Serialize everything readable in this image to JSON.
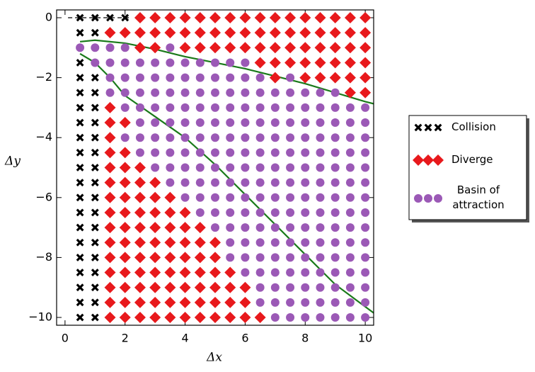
{
  "chart_data": {
    "type": "scatter",
    "xlabel": "Δx",
    "ylabel": "Δy",
    "xlim": [
      -0.28,
      10.28
    ],
    "ylim": [
      -10.26,
      0.26
    ],
    "xticks": [
      0,
      2,
      4,
      6,
      8,
      10
    ],
    "yticks": [
      0,
      {
        "value": -2,
        "label": "−2"
      },
      {
        "value": -4,
        "label": "−4"
      },
      {
        "value": -6,
        "label": "−6"
      },
      {
        "value": -8,
        "label": "−8"
      },
      {
        "value": -10,
        "label": "−10"
      }
    ],
    "legend": "right",
    "series": [
      {
        "name": "Collision",
        "color": "#000000",
        "marker": "x",
        "x": [
          0.5,
          0.5,
          0.5,
          0.5,
          0.5,
          0.5,
          0.5,
          0.5,
          0.5,
          0.5,
          0.5,
          0.5,
          0.5,
          0.5,
          0.5,
          0.5,
          0.5,
          0.5,
          0.5,
          0.5,
          1,
          1,
          1,
          1,
          1,
          1,
          1,
          1,
          1,
          1,
          1,
          1,
          1,
          1,
          1,
          1,
          1,
          1,
          1,
          1.5,
          2
        ],
        "y": [
          0,
          -0.5,
          -1.5,
          -2,
          -2.5,
          -3,
          -3.5,
          -4,
          -4.5,
          -5,
          -5.5,
          -6,
          -6.5,
          -7,
          -7.5,
          -8,
          -8.5,
          -9,
          -9.5,
          -10,
          0,
          -0.5,
          -2,
          -2.5,
          -3,
          -3.5,
          -4,
          -4.5,
          -5,
          -5.5,
          -6,
          -6.5,
          -7,
          -7.5,
          -8,
          -8.5,
          -9,
          -9.5,
          -10,
          0,
          0
        ]
      },
      {
        "name": "Diverge",
        "color": "#e8191c",
        "marker": "D",
        "x": [
          2.5,
          3,
          3.5,
          4,
          4.5,
          5,
          5.5,
          6,
          6.5,
          7,
          7.5,
          8,
          8.5,
          9,
          9.5,
          10,
          1.5,
          2,
          2.5,
          3,
          3.5,
          4,
          4.5,
          5,
          5.5,
          6,
          6.5,
          7,
          7.5,
          8,
          8.5,
          9,
          9.5,
          10,
          2.5,
          3,
          4,
          4.5,
          5,
          5.5,
          6,
          6.5,
          7,
          7.5,
          8,
          8.5,
          9,
          9.5,
          10,
          6.5,
          7,
          7.5,
          8,
          8.5,
          9,
          9.5,
          10,
          7,
          8,
          8.5,
          9,
          9.5,
          10,
          9.5,
          10,
          1.5,
          1.5,
          2,
          1.5,
          1.5,
          2,
          1.5,
          2,
          2.5,
          1.5,
          2,
          2.5,
          3,
          1.5,
          2,
          2.5,
          3,
          3.5,
          1.5,
          2,
          2.5,
          3,
          3.5,
          4,
          1.5,
          2,
          2.5,
          3,
          3.5,
          4,
          4.5,
          1.5,
          2,
          2.5,
          3,
          3.5,
          4,
          4.5,
          5,
          1.5,
          2,
          2.5,
          3,
          3.5,
          4,
          4.5,
          5,
          1.5,
          2,
          2.5,
          3,
          3.5,
          4,
          4.5,
          5,
          5.5,
          1.5,
          2,
          2.5,
          3,
          3.5,
          4,
          4.5,
          5,
          5.5,
          6,
          1.5,
          2,
          2.5,
          3,
          3.5,
          4,
          4.5,
          5,
          5.5,
          6,
          1.5,
          2,
          2.5,
          3,
          3.5,
          4,
          4.5,
          5,
          5.5,
          6,
          6.5
        ],
        "y": [
          0,
          0,
          0,
          0,
          0,
          0,
          0,
          0,
          0,
          0,
          0,
          0,
          0,
          0,
          0,
          0,
          -0.5,
          -0.5,
          -0.5,
          -0.5,
          -0.5,
          -0.5,
          -0.5,
          -0.5,
          -0.5,
          -0.5,
          -0.5,
          -0.5,
          -0.5,
          -0.5,
          -0.5,
          -0.5,
          -0.5,
          -0.5,
          -1,
          -1,
          -1,
          -1,
          -1,
          -1,
          -1,
          -1,
          -1,
          -1,
          -1,
          -1,
          -1,
          -1,
          -1,
          -1.5,
          -1.5,
          -1.5,
          -1.5,
          -1.5,
          -1.5,
          -1.5,
          -1.5,
          -2,
          -2,
          -2,
          -2,
          -2,
          -2,
          -2.5,
          -2.5,
          -3,
          -3.5,
          -3.5,
          -4,
          -4.5,
          -4.5,
          -5,
          -5,
          -5,
          -5.5,
          -5.5,
          -5.5,
          -5.5,
          -6,
          -6,
          -6,
          -6,
          -6,
          -6.5,
          -6.5,
          -6.5,
          -6.5,
          -6.5,
          -6.5,
          -7,
          -7,
          -7,
          -7,
          -7,
          -7,
          -7,
          -7.5,
          -7.5,
          -7.5,
          -7.5,
          -7.5,
          -7.5,
          -7.5,
          -7.5,
          -8,
          -8,
          -8,
          -8,
          -8,
          -8,
          -8,
          -8,
          -8.5,
          -8.5,
          -8.5,
          -8.5,
          -8.5,
          -8.5,
          -8.5,
          -8.5,
          -8.5,
          -9,
          -9,
          -9,
          -9,
          -9,
          -9,
          -9,
          -9,
          -9,
          -9,
          -9.5,
          -9.5,
          -9.5,
          -9.5,
          -9.5,
          -9.5,
          -9.5,
          -9.5,
          -9.5,
          -9.5,
          -10,
          -10,
          -10,
          -10,
          -10,
          -10,
          -10,
          -10,
          -10,
          -10,
          -10
        ]
      },
      {
        "name": "Basin of attraction",
        "color": "#9b59b6",
        "marker": "o",
        "x": [
          0.5,
          1,
          1.5,
          2,
          3.5,
          1,
          1.5,
          2,
          2.5,
          3,
          3.5,
          4,
          4.5,
          5,
          5.5,
          6,
          1.5,
          2,
          2.5,
          3,
          3.5,
          4,
          4.5,
          5,
          5.5,
          6,
          6.5,
          7.5,
          1.5,
          2,
          2.5,
          3,
          3.5,
          4,
          4.5,
          5,
          5.5,
          6,
          6.5,
          7,
          7.5,
          8,
          8.5,
          9,
          2,
          2.5,
          3,
          3.5,
          4,
          4.5,
          5,
          5.5,
          6,
          6.5,
          7,
          7.5,
          8,
          8.5,
          9,
          9.5,
          10,
          2.5,
          3,
          3.5,
          4,
          4.5,
          5,
          5.5,
          6,
          6.5,
          7,
          7.5,
          8,
          8.5,
          9,
          9.5,
          10,
          2,
          2.5,
          3,
          3.5,
          4,
          4.5,
          5,
          5.5,
          6,
          6.5,
          7,
          7.5,
          8,
          8.5,
          9,
          9.5,
          10,
          2.5,
          3,
          3.5,
          4,
          4.5,
          5,
          5.5,
          6,
          6.5,
          7,
          7.5,
          8,
          8.5,
          9,
          9.5,
          10,
          3,
          3.5,
          4,
          4.5,
          5,
          5.5,
          6,
          6.5,
          7,
          7.5,
          8,
          8.5,
          9,
          9.5,
          10,
          3.5,
          4,
          4.5,
          5,
          5.5,
          6,
          6.5,
          7,
          7.5,
          8,
          8.5,
          9,
          9.5,
          10,
          4,
          4.5,
          5,
          5.5,
          6,
          6.5,
          7,
          7.5,
          8,
          8.5,
          9,
          9.5,
          10,
          4.5,
          5,
          5.5,
          6,
          6.5,
          7,
          7.5,
          8,
          8.5,
          9,
          9.5,
          10,
          5,
          5.5,
          6,
          6.5,
          7,
          7.5,
          8,
          8.5,
          9,
          9.5,
          10,
          5.5,
          6,
          6.5,
          7,
          7.5,
          8,
          8.5,
          9,
          9.5,
          10,
          5.5,
          6,
          6.5,
          7,
          7.5,
          8,
          8.5,
          9,
          9.5,
          10,
          6,
          6.5,
          7,
          7.5,
          8,
          8.5,
          9,
          9.5,
          10,
          6.5,
          7,
          7.5,
          8,
          8.5,
          9,
          9.5,
          10,
          6.5,
          7,
          7.5,
          8,
          8.5,
          9,
          9.5,
          10,
          7,
          7.5,
          8,
          8.5,
          9,
          9.5,
          10
        ],
        "y": [
          -1,
          -1,
          -1,
          -1,
          -1,
          -1.5,
          -1.5,
          -1.5,
          -1.5,
          -1.5,
          -1.5,
          -1.5,
          -1.5,
          -1.5,
          -1.5,
          -1.5,
          -2,
          -2,
          -2,
          -2,
          -2,
          -2,
          -2,
          -2,
          -2,
          -2,
          -2,
          -2,
          -2.5,
          -2.5,
          -2.5,
          -2.5,
          -2.5,
          -2.5,
          -2.5,
          -2.5,
          -2.5,
          -2.5,
          -2.5,
          -2.5,
          -2.5,
          -2.5,
          -2.5,
          -2.5,
          -3,
          -3,
          -3,
          -3,
          -3,
          -3,
          -3,
          -3,
          -3,
          -3,
          -3,
          -3,
          -3,
          -3,
          -3,
          -3,
          -3,
          -3.5,
          -3.5,
          -3.5,
          -3.5,
          -3.5,
          -3.5,
          -3.5,
          -3.5,
          -3.5,
          -3.5,
          -3.5,
          -3.5,
          -3.5,
          -3.5,
          -3.5,
          -3.5,
          -4,
          -4,
          -4,
          -4,
          -4,
          -4,
          -4,
          -4,
          -4,
          -4,
          -4,
          -4,
          -4,
          -4,
          -4,
          -4,
          -4,
          -4.5,
          -4.5,
          -4.5,
          -4.5,
          -4.5,
          -4.5,
          -4.5,
          -4.5,
          -4.5,
          -4.5,
          -4.5,
          -4.5,
          -4.5,
          -4.5,
          -4.5,
          -4.5,
          -5,
          -5,
          -5,
          -5,
          -5,
          -5,
          -5,
          -5,
          -5,
          -5,
          -5,
          -5,
          -5,
          -5,
          -5,
          -5.5,
          -5.5,
          -5.5,
          -5.5,
          -5.5,
          -5.5,
          -5.5,
          -5.5,
          -5.5,
          -5.5,
          -5.5,
          -5.5,
          -5.5,
          -5.5,
          -6,
          -6,
          -6,
          -6,
          -6,
          -6,
          -6,
          -6,
          -6,
          -6,
          -6,
          -6,
          -6,
          -6.5,
          -6.5,
          -6.5,
          -6.5,
          -6.5,
          -6.5,
          -6.5,
          -6.5,
          -6.5,
          -6.5,
          -6.5,
          -6.5,
          -7,
          -7,
          -7,
          -7,
          -7,
          -7,
          -7,
          -7,
          -7,
          -7,
          -7,
          -7.5,
          -7.5,
          -7.5,
          -7.5,
          -7.5,
          -7.5,
          -7.5,
          -7.5,
          -7.5,
          -7.5,
          -8,
          -8,
          -8,
          -8,
          -8,
          -8,
          -8,
          -8,
          -8,
          -8,
          -8.5,
          -8.5,
          -8.5,
          -8.5,
          -8.5,
          -8.5,
          -8.5,
          -8.5,
          -8.5,
          -9,
          -9,
          -9,
          -9,
          -9,
          -9,
          -9,
          -9,
          -9.5,
          -9.5,
          -9.5,
          -9.5,
          -9.5,
          -9.5,
          -9.5,
          -9.5,
          -10,
          -10,
          -10,
          -10,
          -10,
          -10,
          -10
        ]
      }
    ],
    "lines": [
      {
        "color": "#000000",
        "style": "dashed",
        "x": [
          0.1,
          2.2
        ],
        "y": [
          0,
          0
        ]
      },
      {
        "color": "#1a7a1a",
        "style": "solid",
        "x": [
          0.5,
          1,
          2,
          3,
          4,
          5,
          6,
          7,
          8,
          9,
          10,
          10.28
        ],
        "y": [
          -0.8,
          -0.75,
          -0.85,
          -1.05,
          -1.3,
          -1.5,
          -1.7,
          -1.95,
          -2.2,
          -2.5,
          -2.8,
          -2.87
        ]
      },
      {
        "color": "#1a7a1a",
        "style": "solid",
        "x": [
          0.5,
          1,
          1.5,
          2,
          3,
          4,
          5,
          6,
          7,
          8,
          9,
          10.28
        ],
        "y": [
          -1.2,
          -1.5,
          -2.0,
          -2.6,
          -3.3,
          -4.0,
          -4.9,
          -5.9,
          -6.9,
          -7.9,
          -8.9,
          -9.85
        ]
      }
    ]
  }
}
